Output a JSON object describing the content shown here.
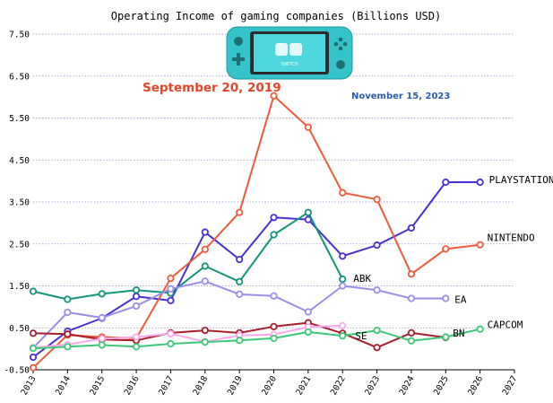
{
  "chart_data": {
    "type": "line",
    "title": "Operating Income of gaming companies (Billions USD)",
    "xlabel": "",
    "ylabel": "",
    "x_ticks": [
      "2013",
      "2014",
      "2015",
      "2016",
      "2017",
      "2018",
      "2019",
      "2020",
      "2021",
      "2022",
      "2023",
      "2024",
      "2025",
      "2026",
      "2027"
    ],
    "y_ticks": [
      "-0.50",
      "0.50",
      "1.50",
      "2.50",
      "3.50",
      "4.50",
      "5.50",
      "6.50",
      "7.50"
    ],
    "xlim": [
      2013,
      2027
    ],
    "ylim": [
      -0.5,
      7.5
    ],
    "grid": "horizontal dotted",
    "annotations": {
      "date_left": "September 20, 2019",
      "date_right": "November 15, 2023"
    },
    "series": [
      {
        "name": "PLAYSTATION",
        "color": "#4a2fd6",
        "x": [
          2013,
          2014,
          2015,
          2016,
          2017,
          2018,
          2019,
          2020,
          2021,
          2022,
          2023,
          2024,
          2025,
          2026
        ],
        "y": [
          -0.2,
          0.42,
          0.73,
          1.25,
          1.15,
          2.78,
          2.13,
          3.13,
          3.08,
          2.21,
          2.47,
          2.88,
          3.97,
          3.97
        ]
      },
      {
        "name": "NINTENDO",
        "color": "#ef5a3c",
        "x": [
          2013,
          2014,
          2015,
          2016,
          2017,
          2018,
          2019,
          2020,
          2021,
          2022,
          2023,
          2024,
          2025,
          2026
        ],
        "y": [
          -0.45,
          0.33,
          0.28,
          0.25,
          1.68,
          2.37,
          3.25,
          6.03,
          5.28,
          3.72,
          3.56,
          1.78,
          2.38,
          2.48
        ]
      },
      {
        "name": "ABK",
        "color": "#12957a",
        "x": [
          2013,
          2014,
          2015,
          2016,
          2017,
          2018,
          2019,
          2020,
          2021,
          2022
        ],
        "y": [
          1.37,
          1.18,
          1.31,
          1.4,
          1.33,
          1.97,
          1.6,
          2.72,
          3.25,
          1.66
        ]
      },
      {
        "name": "EA",
        "color": "#9a8ee8",
        "x": [
          2013,
          2014,
          2015,
          2016,
          2017,
          2018,
          2019,
          2020,
          2021,
          2022,
          2023,
          2024,
          2025
        ],
        "y": [
          0.02,
          0.87,
          0.74,
          1.02,
          1.43,
          1.61,
          1.3,
          1.26,
          0.88,
          1.5,
          1.4,
          1.2,
          1.2
        ]
      },
      {
        "name": "BN",
        "color": "#a81e2c",
        "x": [
          2013,
          2014,
          2015,
          2016,
          2017,
          2018,
          2019,
          2020,
          2021,
          2022,
          2023,
          2024,
          2025
        ],
        "y": [
          0.37,
          0.35,
          0.22,
          0.2,
          0.38,
          0.44,
          0.38,
          0.53,
          0.62,
          0.37,
          0.03,
          0.38,
          0.27
        ]
      },
      {
        "name": "SE",
        "color": "#f8a8ec",
        "x": [
          2013,
          2014,
          2015,
          2016,
          2017,
          2018,
          2019,
          2020,
          2021,
          2022
        ],
        "y": [
          0.03,
          0.1,
          0.24,
          0.28,
          0.36,
          0.17,
          0.32,
          0.34,
          0.52,
          0.55
        ]
      },
      {
        "name": "CAPCOM",
        "color": "#3cc878",
        "x": [
          2013,
          2014,
          2015,
          2016,
          2017,
          2018,
          2019,
          2020,
          2021,
          2022,
          2023,
          2024,
          2025,
          2026
        ],
        "y": [
          0.01,
          0.05,
          0.09,
          0.05,
          0.12,
          0.16,
          0.2,
          0.25,
          0.4,
          0.31,
          0.44,
          0.19,
          0.28,
          0.47
        ]
      }
    ]
  },
  "image": {
    "device_icon": "nintendo-switch-lite-icon",
    "device_text": "SWITCH"
  }
}
